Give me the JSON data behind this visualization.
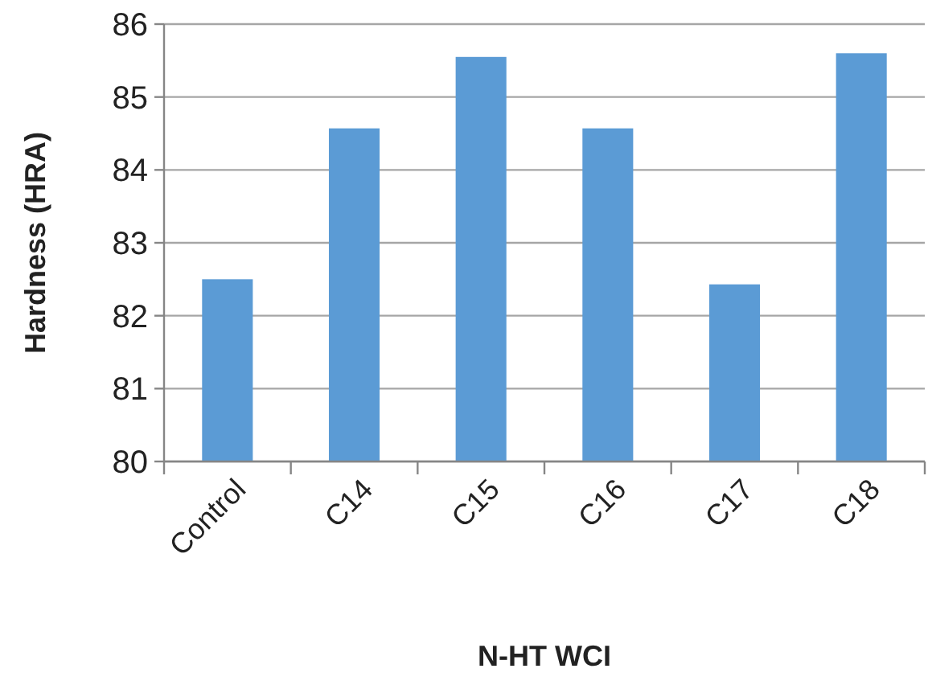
{
  "chart_data": {
    "type": "bar",
    "xlabel": "N-HT WCI",
    "ylabel": "Hardness (HRA)",
    "categories": [
      "Control",
      "C14",
      "C15",
      "C16",
      "C17",
      "C18"
    ],
    "values": [
      82.5,
      84.57,
      85.55,
      84.57,
      82.43,
      85.6
    ],
    "color": "#5b9bd5",
    "ylim": [
      80,
      86
    ],
    "yticks": [
      80,
      81,
      82,
      83,
      84,
      85,
      86
    ],
    "grid": "y"
  }
}
